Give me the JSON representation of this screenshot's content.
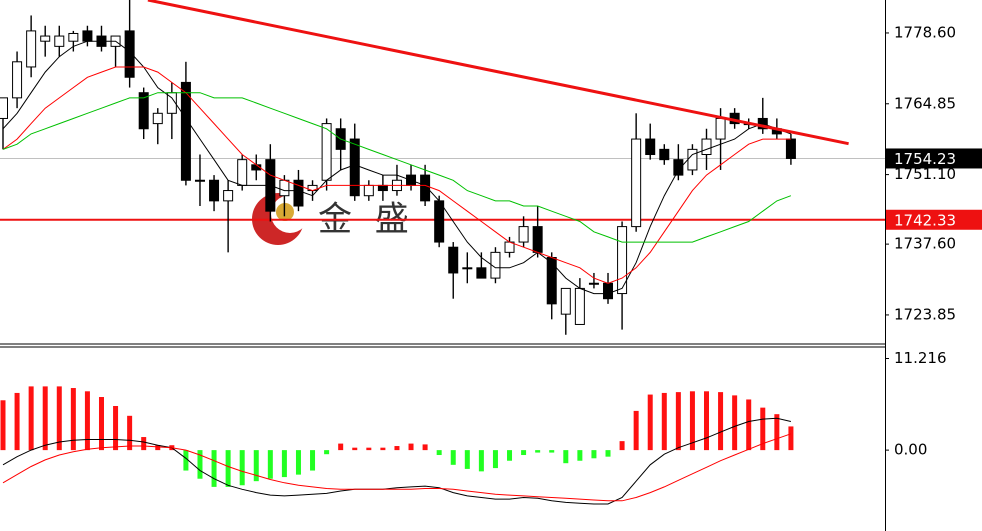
{
  "chart_data": [
    {
      "type": "candlestick",
      "watermark": "金 盛",
      "ylim": [
        1718.4,
        1785.0
      ],
      "yticks": [
        {
          "value": 1778.6,
          "label": "1778.60"
        },
        1764.85,
        {
          "value": 1751.1,
          "label": "1751.10"
        },
        {
          "value": 1737.6,
          "label": "1737.60"
        },
        1723.85
      ],
      "up_color": "#ffffff",
      "down_color": "#000000",
      "candles": {
        "open": [
          1762,
          1766,
          1772,
          1777,
          1776,
          1777,
          1779,
          1778,
          1776,
          1779,
          1767,
          1761,
          1763,
          1769,
          1750,
          1750,
          1746,
          1749,
          1753,
          1754,
          1747,
          1750,
          1748,
          1750,
          1760,
          1758,
          1747,
          1749,
          1748,
          1751,
          1751,
          1746,
          1737,
          1733,
          1733,
          1731,
          1736,
          1738,
          1741,
          1735,
          1724,
          1722,
          1730,
          1730,
          1728,
          1741,
          1758,
          1756,
          1754,
          1752,
          1755,
          1758,
          1763,
          1761,
          1762,
          1760,
          1758
        ],
        "high": [
          1766,
          1775,
          1782,
          1780,
          1780,
          1779,
          1780,
          1780,
          1778,
          1785,
          1768,
          1764,
          1769,
          1773,
          1755,
          1751,
          1750,
          1755,
          1755,
          1757,
          1751,
          1752,
          1750,
          1762,
          1762,
          1761,
          1750,
          1751,
          1753,
          1753,
          1753,
          1747,
          1738,
          1736,
          1736,
          1737,
          1739,
          1743,
          1745,
          1736,
          1728,
          1731,
          1732,
          1732,
          1742,
          1763,
          1761,
          1757,
          1757,
          1757,
          1760,
          1764,
          1764,
          1762,
          1766,
          1762,
          1759
        ],
        "low": [
          1756,
          1764,
          1770,
          1774,
          1774,
          1775,
          1776,
          1775,
          1772,
          1768,
          1758,
          1757,
          1758,
          1749,
          1745,
          1744,
          1736,
          1748,
          1750,
          1742,
          1743,
          1744,
          1746,
          1748,
          1752,
          1746,
          1746,
          1746,
          1747,
          1748,
          1745,
          1737,
          1727,
          1730,
          1731,
          1730,
          1735,
          1737,
          1735,
          1723,
          1720,
          1722,
          1729,
          1726,
          1721,
          1740,
          1754,
          1753,
          1750,
          1751,
          1752,
          1752,
          1760,
          1760,
          1759,
          1758,
          1753
        ],
        "close": [
          1766,
          1773,
          1779,
          1778,
          1778,
          1778.5,
          1777,
          1776,
          1778,
          1770,
          1760,
          1763,
          1767,
          1750,
          1750,
          1746,
          1748,
          1754,
          1752,
          1744,
          1750,
          1745,
          1749,
          1761,
          1756,
          1747,
          1749,
          1748,
          1750,
          1749,
          1746,
          1738,
          1732,
          1733,
          1731,
          1736,
          1738,
          1741,
          1736,
          1726,
          1729,
          1729,
          1730,
          1727,
          1741,
          1758,
          1755,
          1754,
          1751,
          1756,
          1758,
          1762,
          1761,
          1761,
          1760,
          1759,
          1754.23
        ]
      },
      "series": [
        {
          "color": "#000000",
          "values": [
            1760,
            1763,
            1767,
            1771,
            1774,
            1776,
            1777,
            1777,
            1777,
            1775,
            1772,
            1768,
            1766,
            1762,
            1758,
            1754,
            1750,
            1749,
            1749,
            1749,
            1748,
            1748,
            1747,
            1750,
            1752,
            1753,
            1752,
            1751,
            1751,
            1750,
            1749,
            1746,
            1742,
            1738,
            1735,
            1733,
            1733,
            1734,
            1736,
            1734,
            1731,
            1729,
            1728,
            1728,
            1729,
            1734,
            1741,
            1747,
            1752,
            1755,
            1756,
            1757,
            1758,
            1760,
            1761,
            1760,
            1759
          ]
        },
        {
          "color": "#ff0000",
          "values": [
            1756,
            1758,
            1761,
            1764,
            1766,
            1768,
            1770,
            1771,
            1772,
            1772,
            1772,
            1771,
            1769,
            1767,
            1764,
            1761,
            1758,
            1755,
            1753,
            1751,
            1750,
            1749,
            1748,
            1749,
            1749,
            1749,
            1749,
            1749,
            1749,
            1749,
            1749,
            1748,
            1746,
            1744,
            1742,
            1740,
            1738,
            1737,
            1736,
            1735,
            1734,
            1733,
            1731,
            1730,
            1731,
            1733,
            1736,
            1740,
            1744,
            1748,
            1751,
            1753,
            1755,
            1757,
            1758,
            1758,
            1758
          ]
        },
        {
          "color": "#00c000",
          "values": [
            1756,
            1757,
            1759,
            1760,
            1761,
            1762,
            1763,
            1764,
            1765,
            1766,
            1766,
            1767,
            1767,
            1767,
            1767,
            1766,
            1766,
            1766,
            1765,
            1764,
            1763,
            1762,
            1761,
            1760,
            1758,
            1757,
            1756,
            1755,
            1754,
            1753,
            1752,
            1751,
            1750,
            1748,
            1747,
            1746,
            1746,
            1745,
            1745,
            1744,
            1743,
            1742,
            1740,
            1739,
            1738,
            1738,
            1738,
            1738,
            1738,
            1738,
            1739,
            1740,
            1741,
            1742,
            1744,
            1746,
            1747
          ]
        }
      ],
      "trendline": {
        "color": "#ee1111",
        "x": [
          10.3,
          60.1
        ],
        "y": [
          1785.0,
          1757.1
        ]
      },
      "hlines": [
        {
          "value": 1754.23,
          "color": "#c0c0c0",
          "label_color": "#000000"
        },
        {
          "value": 1742.33,
          "color": "#ee1111",
          "label_color": "#ee1111"
        }
      ]
    },
    {
      "type": "macd",
      "ylim": [
        -9.9,
        12.5
      ],
      "yticks": [
        11.216,
        {
          "value": 0,
          "label": "0.00"
        }
      ],
      "up_color": "#ff1111",
      "down_color": "#22ff22",
      "values": [
        6.1,
        7.0,
        7.8,
        7.8,
        7.8,
        7.6,
        7.2,
        6.5,
        5.4,
        4.2,
        1.6,
        0.6,
        0.6,
        -2.5,
        -3.5,
        -4.5,
        -4.5,
        -4.3,
        -3.8,
        -3.5,
        -3.3,
        -3.0,
        -2.5,
        -0.5,
        0.8,
        0.3,
        0.3,
        0.3,
        0.5,
        0.8,
        0.7,
        -0.6,
        -1.8,
        -2.3,
        -2.6,
        -2.2,
        -1.3,
        -0.6,
        -0.3,
        -0.3,
        -1.6,
        -1.3,
        -1.0,
        -0.8,
        1.1,
        4.8,
        6.8,
        7.0,
        7.1,
        7.2,
        7.2,
        7.1,
        6.7,
        6.2,
        5.2,
        4.4,
        2.9
      ],
      "series": [
        {
          "color": "#000000",
          "values": [
            -1.8,
            -0.8,
            0.0,
            0.6,
            1.0,
            1.2,
            1.3,
            1.3,
            1.3,
            1.2,
            1.0,
            0.6,
            0.3,
            -1.0,
            -2.5,
            -3.5,
            -4.3,
            -4.8,
            -5.2,
            -5.5,
            -5.6,
            -5.5,
            -5.4,
            -5.3,
            -5.0,
            -4.8,
            -4.8,
            -4.8,
            -4.6,
            -4.5,
            -4.4,
            -4.6,
            -5.2,
            -5.6,
            -5.8,
            -6.0,
            -6.0,
            -5.8,
            -5.9,
            -6.2,
            -6.4,
            -6.5,
            -6.6,
            -6.6,
            -5.8,
            -3.8,
            -1.8,
            -0.5,
            0.3,
            0.9,
            1.5,
            2.2,
            2.9,
            3.5,
            3.8,
            3.9,
            3.5
          ]
        },
        {
          "color": "#ff0000",
          "values": [
            -4.0,
            -3.0,
            -2.0,
            -1.2,
            -0.6,
            -0.2,
            0.1,
            0.3,
            0.4,
            0.5,
            0.5,
            0.4,
            0.3,
            0.0,
            -0.6,
            -1.3,
            -2.0,
            -2.6,
            -3.1,
            -3.6,
            -4.0,
            -4.3,
            -4.5,
            -4.7,
            -4.8,
            -4.8,
            -4.8,
            -4.8,
            -4.8,
            -4.8,
            -4.7,
            -4.7,
            -4.8,
            -5.0,
            -5.2,
            -5.4,
            -5.5,
            -5.6,
            -5.7,
            -5.8,
            -5.9,
            -6.0,
            -6.1,
            -6.2,
            -6.2,
            -5.8,
            -5.2,
            -4.5,
            -3.7,
            -2.9,
            -2.1,
            -1.3,
            -0.6,
            0.1,
            0.8,
            1.4,
            2.0
          ]
        }
      ]
    }
  ]
}
